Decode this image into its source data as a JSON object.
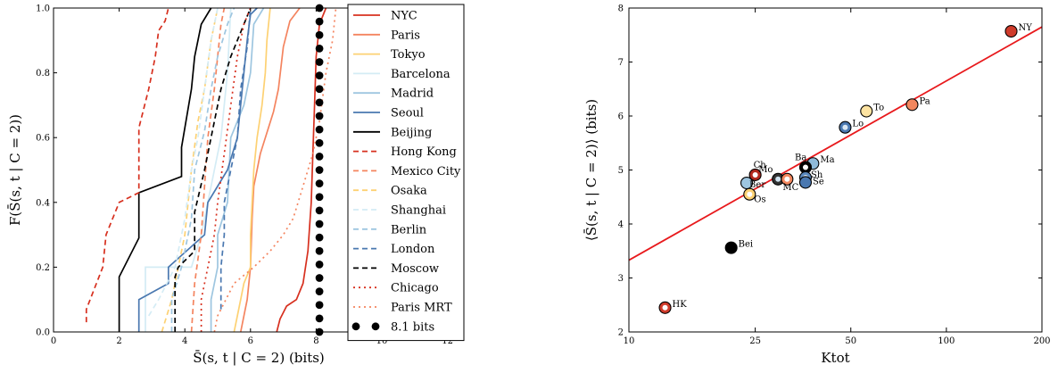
{
  "chart_data": [
    {
      "type": "line",
      "title": "",
      "xlabel": "S̄(s, t | C = 2) (bits)",
      "ylabel": "F(S̄(s, t | C = 2))",
      "xlim": [
        0,
        12.5
      ],
      "ylim": [
        0,
        1
      ],
      "xticks": [
        0,
        2,
        4,
        6,
        8,
        10,
        12
      ],
      "yticks": [
        0.0,
        0.2,
        0.4,
        0.6,
        0.8,
        1.0
      ],
      "grid": false,
      "legend_position": "right",
      "series": [
        {
          "name": "NYC",
          "color": "#d7301f",
          "style": "solid",
          "points": [
            [
              6.8,
              0
            ],
            [
              6.9,
              0.04
            ],
            [
              7.1,
              0.08
            ],
            [
              7.4,
              0.1
            ],
            [
              7.6,
              0.15
            ],
            [
              7.75,
              0.25
            ],
            [
              7.85,
              0.4
            ],
            [
              7.9,
              0.55
            ],
            [
              7.95,
              0.7
            ],
            [
              8.0,
              0.85
            ],
            [
              8.1,
              0.95
            ],
            [
              8.3,
              1.0
            ]
          ]
        },
        {
          "name": "Paris",
          "color": "#f4845f",
          "style": "solid",
          "points": [
            [
              5.7,
              0
            ],
            [
              5.9,
              0.1
            ],
            [
              6.0,
              0.2
            ],
            [
              6.05,
              0.35
            ],
            [
              6.1,
              0.45
            ],
            [
              6.3,
              0.55
            ],
            [
              6.7,
              0.68
            ],
            [
              6.85,
              0.75
            ],
            [
              7.0,
              0.88
            ],
            [
              7.2,
              0.96
            ],
            [
              7.5,
              1.0
            ]
          ]
        },
        {
          "name": "Tokyo",
          "color": "#fdd173",
          "style": "solid",
          "points": [
            [
              5.5,
              0
            ],
            [
              5.6,
              0.05
            ],
            [
              5.7,
              0.1
            ],
            [
              5.8,
              0.15
            ],
            [
              6.0,
              0.2
            ],
            [
              6.0,
              0.3
            ],
            [
              6.05,
              0.4
            ],
            [
              6.1,
              0.5
            ],
            [
              6.2,
              0.6
            ],
            [
              6.35,
              0.7
            ],
            [
              6.45,
              0.8
            ],
            [
              6.5,
              0.9
            ],
            [
              6.6,
              1.0
            ]
          ]
        },
        {
          "name": "Barcelona",
          "color": "#d4ecf5",
          "style": "solid",
          "points": [
            [
              2.8,
              0
            ],
            [
              2.8,
              0.2
            ],
            [
              4.2,
              0.2
            ],
            [
              4.5,
              0.3
            ],
            [
              4.9,
              0.5
            ],
            [
              5.1,
              0.6
            ],
            [
              5.3,
              0.8
            ],
            [
              5.4,
              1.0
            ]
          ]
        },
        {
          "name": "Madrid",
          "color": "#9ec6e0",
          "style": "solid",
          "points": [
            [
              4.8,
              0
            ],
            [
              4.8,
              0.1
            ],
            [
              5.0,
              0.2
            ],
            [
              5.0,
              0.3
            ],
            [
              5.3,
              0.4
            ],
            [
              5.4,
              0.6
            ],
            [
              5.8,
              0.7
            ],
            [
              6.0,
              0.8
            ],
            [
              6.1,
              0.95
            ],
            [
              6.4,
              1.0
            ]
          ]
        },
        {
          "name": "Seoul",
          "color": "#4a78b0",
          "style": "solid",
          "points": [
            [
              2.6,
              0
            ],
            [
              2.6,
              0.1
            ],
            [
              3.5,
              0.15
            ],
            [
              3.5,
              0.2
            ],
            [
              4.6,
              0.3
            ],
            [
              4.7,
              0.4
            ],
            [
              5.3,
              0.5
            ],
            [
              5.6,
              0.6
            ],
            [
              5.8,
              0.8
            ],
            [
              5.9,
              0.9
            ],
            [
              6.0,
              0.98
            ],
            [
              6.2,
              1.0
            ]
          ]
        },
        {
          "name": "Beijing",
          "color": "#000000",
          "style": "solid",
          "points": [
            [
              2.0,
              0
            ],
            [
              2.0,
              0.17
            ],
            [
              2.6,
              0.29
            ],
            [
              2.6,
              0.43
            ],
            [
              3.9,
              0.48
            ],
            [
              3.9,
              0.57
            ],
            [
              4.2,
              0.75
            ],
            [
              4.3,
              0.85
            ],
            [
              4.5,
              0.95
            ],
            [
              4.8,
              1.0
            ]
          ]
        },
        {
          "name": "Hong Kong",
          "color": "#d7301f",
          "style": "dashed",
          "points": [
            [
              1.0,
              0.03
            ],
            [
              1.0,
              0.07
            ],
            [
              1.5,
              0.2
            ],
            [
              1.6,
              0.3
            ],
            [
              2.0,
              0.4
            ],
            [
              2.6,
              0.43
            ],
            [
              2.6,
              0.63
            ],
            [
              2.9,
              0.75
            ],
            [
              3.1,
              0.85
            ],
            [
              3.2,
              0.93
            ],
            [
              3.4,
              0.96
            ],
            [
              3.5,
              1.0
            ]
          ]
        },
        {
          "name": "Mexico City",
          "color": "#f4845f",
          "style": "dashed",
          "points": [
            [
              4.2,
              0
            ],
            [
              4.3,
              0.15
            ],
            [
              4.5,
              0.3
            ],
            [
              4.6,
              0.45
            ],
            [
              4.7,
              0.6
            ],
            [
              4.9,
              0.75
            ],
            [
              5.0,
              0.85
            ],
            [
              5.1,
              0.95
            ],
            [
              5.2,
              1.0
            ]
          ]
        },
        {
          "name": "Osaka",
          "color": "#fdd173",
          "style": "dashed",
          "points": [
            [
              3.3,
              0
            ],
            [
              3.6,
              0.1
            ],
            [
              4.0,
              0.3
            ],
            [
              4.2,
              0.5
            ],
            [
              4.4,
              0.65
            ],
            [
              4.6,
              0.75
            ],
            [
              4.8,
              0.9
            ],
            [
              5.0,
              1.0
            ]
          ]
        },
        {
          "name": "Shanghai",
          "color": "#d4ecf5",
          "style": "dashed",
          "points": [
            [
              2.9,
              0.05
            ],
            [
              3.2,
              0.1
            ],
            [
              3.7,
              0.2
            ],
            [
              4.0,
              0.35
            ],
            [
              4.2,
              0.5
            ],
            [
              4.4,
              0.6
            ],
            [
              4.6,
              0.75
            ],
            [
              4.8,
              0.9
            ],
            [
              5.0,
              1.0
            ]
          ]
        },
        {
          "name": "Berlin",
          "color": "#9ec6e0",
          "style": "dashed",
          "points": [
            [
              3.6,
              0
            ],
            [
              3.6,
              0.1
            ],
            [
              3.9,
              0.2
            ],
            [
              4.2,
              0.35
            ],
            [
              4.3,
              0.5
            ],
            [
              4.6,
              0.62
            ],
            [
              4.8,
              0.75
            ],
            [
              5.0,
              0.85
            ],
            [
              5.3,
              0.95
            ],
            [
              5.5,
              1.0
            ]
          ]
        },
        {
          "name": "London",
          "color": "#4a78b0",
          "style": "dashed",
          "points": [
            [
              5.1,
              0.07
            ],
            [
              5.1,
              0.2
            ],
            [
              5.2,
              0.3
            ],
            [
              5.2,
              0.4
            ],
            [
              5.4,
              0.5
            ],
            [
              5.6,
              0.6
            ],
            [
              5.7,
              0.75
            ],
            [
              5.9,
              0.88
            ],
            [
              6.0,
              1.0
            ]
          ]
        },
        {
          "name": "Moscow",
          "color": "#000000",
          "style": "dashed",
          "points": [
            [
              3.7,
              0
            ],
            [
              3.7,
              0.17
            ],
            [
              3.8,
              0.2
            ],
            [
              4.3,
              0.25
            ],
            [
              4.3,
              0.37
            ],
            [
              4.6,
              0.5
            ],
            [
              4.8,
              0.6
            ],
            [
              5.1,
              0.75
            ],
            [
              5.4,
              0.85
            ],
            [
              5.8,
              0.95
            ],
            [
              6.0,
              1.0
            ]
          ]
        },
        {
          "name": "Chicago",
          "color": "#d7301f",
          "style": "dotted",
          "points": [
            [
              4.5,
              0
            ],
            [
              4.5,
              0.1
            ],
            [
              4.7,
              0.2
            ],
            [
              4.9,
              0.3
            ],
            [
              5.0,
              0.4
            ],
            [
              5.2,
              0.55
            ],
            [
              5.4,
              0.7
            ],
            [
              5.6,
              0.85
            ],
            [
              5.8,
              0.95
            ],
            [
              6.0,
              1.0
            ]
          ]
        },
        {
          "name": "Paris MRT",
          "color": "#f4845f",
          "style": "dotted",
          "points": [
            [
              4.9,
              0
            ],
            [
              5.0,
              0.05
            ],
            [
              5.5,
              0.15
            ],
            [
              6.1,
              0.2
            ],
            [
              6.6,
              0.25
            ],
            [
              7.0,
              0.3
            ],
            [
              7.3,
              0.35
            ],
            [
              7.6,
              0.45
            ],
            [
              7.9,
              0.55
            ],
            [
              8.1,
              0.65
            ],
            [
              8.3,
              0.8
            ],
            [
              8.5,
              0.9
            ],
            [
              8.6,
              1.0
            ]
          ]
        },
        {
          "name": "8.1 bits",
          "color": "#000000",
          "style": "big-dots",
          "x": 8.1
        }
      ]
    },
    {
      "type": "scatter",
      "title": "",
      "xlabel": "Ktot",
      "ylabel": "⟨S̄(s, t | C = 2)⟩ (bits)",
      "xscale": "log",
      "xlim": [
        10,
        200
      ],
      "ylim": [
        2,
        8
      ],
      "xticks": [
        10,
        25,
        50,
        100,
        200
      ],
      "yticks": [
        2,
        3,
        4,
        5,
        6,
        7,
        8
      ],
      "grid": false,
      "fit_line": {
        "color": "#e8191c",
        "points": [
          [
            10,
            3.33
          ],
          [
            200,
            7.65
          ]
        ]
      },
      "points": [
        {
          "label": "NY",
          "x": 160,
          "y": 7.57,
          "fill": "#cf3b2b",
          "inner": null
        },
        {
          "label": "Pa",
          "x": 78,
          "y": 6.21,
          "fill": "#f2875e",
          "inner": null
        },
        {
          "label": "To",
          "x": 56,
          "y": 6.09,
          "fill": "#fde3a1",
          "inner": null
        },
        {
          "label": "Lo",
          "x": 48,
          "y": 5.79,
          "fill": "#4a78b0",
          "inner": "#dbe8f3"
        },
        {
          "label": "Ma",
          "x": 38,
          "y": 5.12,
          "fill": "#8fbad9",
          "inner": null
        },
        {
          "label": "Ba",
          "x": 36,
          "y": 5.05,
          "fill": "#000000",
          "inner": "#ffffff"
        },
        {
          "label": "Sh",
          "x": 36,
          "y": 4.86,
          "fill": "#5a88bd",
          "inner": "#dbe8f3"
        },
        {
          "label": "Se",
          "x": 36,
          "y": 4.77,
          "fill": "#4a78b0",
          "inner": null
        },
        {
          "label": "Mo",
          "x": 29.5,
          "y": 4.83,
          "fill": "#333333",
          "inner": "#cfe3f1"
        },
        {
          "label": "MC",
          "x": 31.5,
          "y": 4.83,
          "fill": "#f2875e",
          "inner": "#ffffff"
        },
        {
          "label": "Ch",
          "x": 25,
          "y": 4.91,
          "fill": "#b22a1e",
          "inner": "#ffffff"
        },
        {
          "label": "Ber",
          "x": 23.5,
          "y": 4.76,
          "fill": "#9ec6e0",
          "inner": null
        },
        {
          "label": "Os",
          "x": 24,
          "y": 4.55,
          "fill": "#fdd173",
          "inner": "#ffffff"
        },
        {
          "label": "Bei",
          "x": 21,
          "y": 3.56,
          "fill": "#000000",
          "inner": null
        },
        {
          "label": "HK",
          "x": 13,
          "y": 2.45,
          "fill": "#cf3b2b",
          "inner": "#ffffff"
        }
      ]
    }
  ]
}
